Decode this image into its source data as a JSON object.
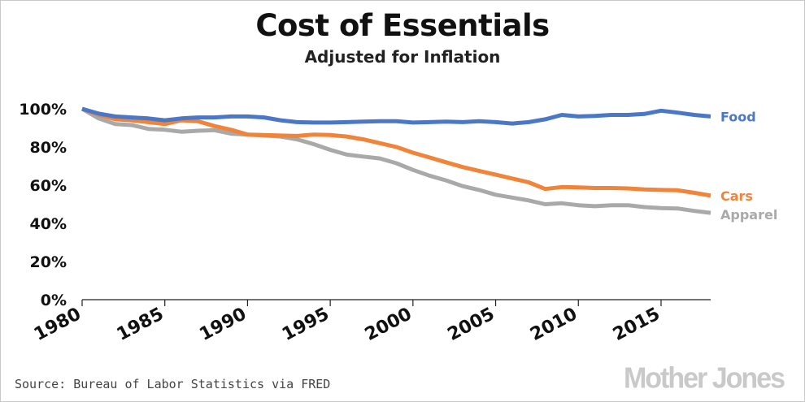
{
  "title": "Cost of Essentials",
  "subtitle": "Adjusted for Inflation",
  "source": "Source: Bureau of Labor Statistics via FRED",
  "logo_text": "Mother Jones",
  "chart_data": {
    "type": "line",
    "title": "Cost of Essentials",
    "subtitle": "Adjusted for Inflation",
    "xlabel": "",
    "ylabel": "",
    "xlim": [
      1980,
      2018
    ],
    "ylim": [
      0,
      100
    ],
    "x_ticks": [
      1980,
      1985,
      1990,
      1995,
      2000,
      2005,
      2010,
      2015
    ],
    "x_tick_labels": [
      "1980",
      "1985",
      "1990",
      "1995",
      "2000",
      "2005",
      "2010",
      "2015"
    ],
    "y_ticks": [
      0,
      20,
      40,
      60,
      80,
      100
    ],
    "y_tick_labels": [
      "0%",
      "20%",
      "40%",
      "60%",
      "80%",
      "100%"
    ],
    "grid": false,
    "legend": "end-of-line labels",
    "x": [
      1980,
      1981,
      1982,
      1983,
      1984,
      1985,
      1986,
      1987,
      1988,
      1989,
      1990,
      1991,
      1992,
      1993,
      1994,
      1995,
      1996,
      1997,
      1998,
      1999,
      2000,
      2001,
      2002,
      2003,
      2004,
      2005,
      2006,
      2007,
      2008,
      2009,
      2010,
      2011,
      2012,
      2013,
      2014,
      2015,
      2016,
      2017,
      2018
    ],
    "series": [
      {
        "name": "Food",
        "color": "#4a78c6",
        "values": [
          100,
          97.5,
          96,
          95.5,
          95,
          94,
          95,
          95.5,
          95.5,
          96,
          96,
          95.5,
          94,
          93,
          92.8,
          92.8,
          93,
          93.3,
          93.5,
          93.5,
          92.8,
          93,
          93.3,
          93,
          93.5,
          93,
          92.3,
          93,
          94.5,
          96.8,
          96,
          96.3,
          96.8,
          96.8,
          97.3,
          99,
          98,
          96.8,
          96
        ]
      },
      {
        "name": "Cars",
        "color": "#f0843a",
        "values": [
          100,
          97,
          94.5,
          94,
          93,
          92,
          94,
          93.5,
          91,
          89,
          86.5,
          86.3,
          86,
          85.8,
          86.5,
          86.3,
          85.5,
          84,
          82,
          80,
          77,
          74.5,
          72,
          69.5,
          67.5,
          65.5,
          63.5,
          61.5,
          58,
          59,
          58.8,
          58.5,
          58.5,
          58.3,
          57.8,
          57.5,
          57.3,
          56,
          54.5
        ]
      },
      {
        "name": "Apparel",
        "color": "#a9a9a9",
        "values": [
          100,
          95,
          92,
          91.5,
          89.5,
          89,
          88,
          88.5,
          88.8,
          87,
          86.5,
          86,
          85.5,
          84,
          81.5,
          78.5,
          76,
          75,
          74,
          71.5,
          68,
          65,
          62.5,
          59.5,
          57.5,
          55,
          53.5,
          52,
          50,
          50.5,
          49.5,
          49,
          49.5,
          49.5,
          48.5,
          48,
          47.8,
          46.5,
          45.5
        ]
      }
    ]
  }
}
